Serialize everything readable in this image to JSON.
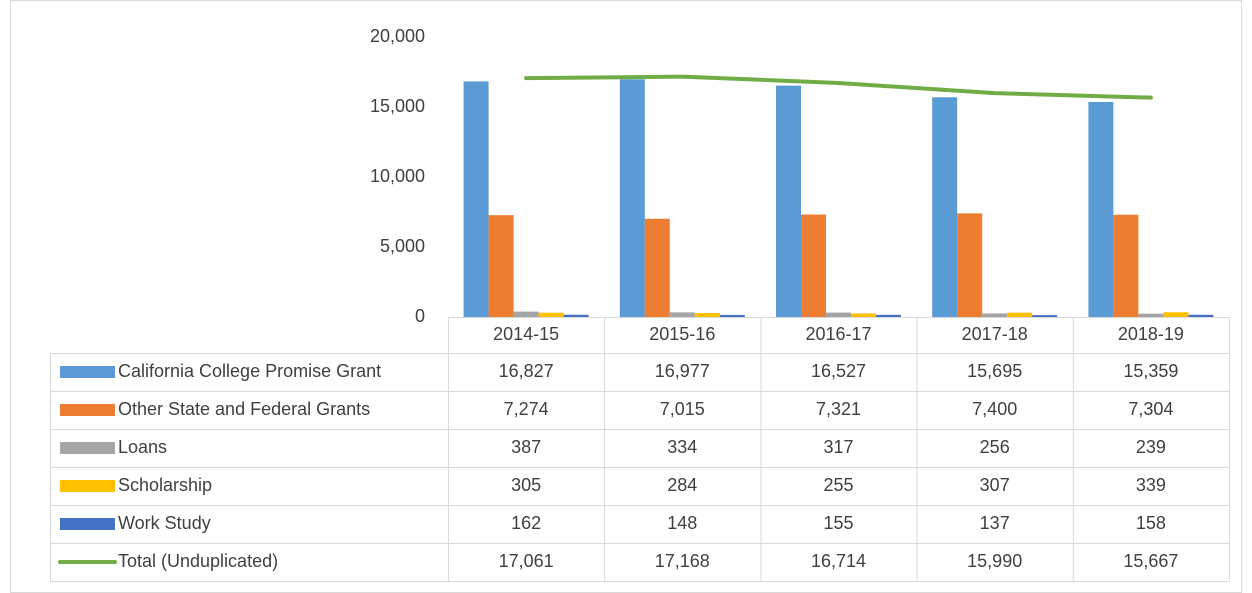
{
  "chart_data": {
    "type": "bar",
    "categories": [
      "2014-15",
      "2015-16",
      "2016-17",
      "2017-18",
      "2018-19"
    ],
    "series": [
      {
        "name": "California College Promise Grant",
        "color": "#5b9bd5",
        "values": [
          16827,
          16977,
          16527,
          15695,
          15359
        ],
        "value_labels": [
          "16,827",
          "16,977",
          "16,527",
          "15,695",
          "15,359"
        ]
      },
      {
        "name": "Other State and Federal Grants",
        "color": "#ed7d31",
        "values": [
          7274,
          7015,
          7321,
          7400,
          7304
        ],
        "value_labels": [
          "7,274",
          "7,015",
          "7,321",
          "7,400",
          "7,304"
        ]
      },
      {
        "name": "Loans",
        "color": "#a5a5a5",
        "values": [
          387,
          334,
          317,
          256,
          239
        ]
      },
      {
        "name": "Scholarship",
        "color": "#ffc000",
        "values": [
          305,
          284,
          255,
          307,
          339
        ]
      },
      {
        "name": "Work Study",
        "color": "#4472c4",
        "values": [
          162,
          148,
          155,
          137,
          158
        ]
      },
      {
        "name": "Total (Unduplicated)",
        "color": "#70ad47",
        "type": "line",
        "values": [
          17061,
          17168,
          16714,
          15990,
          15667
        ],
        "value_labels": [
          "17,061",
          "17,168",
          "16,714",
          "15,990",
          "15,667"
        ]
      }
    ],
    "ylim": [
      0,
      20000
    ],
    "yticks": [
      0,
      {
        "value": 5000,
        "label": "5,000"
      },
      {
        "value": 10000,
        "label": "10,000"
      },
      {
        "value": 15000,
        "label": "15,000"
      },
      {
        "value": 20000,
        "label": "20,000"
      }
    ],
    "grid": false
  }
}
